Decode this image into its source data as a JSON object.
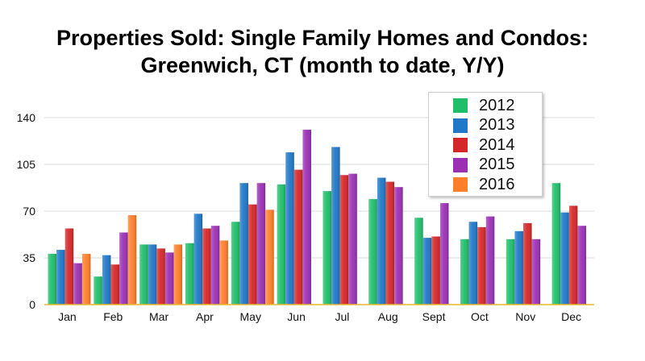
{
  "title": {
    "line1": "Properties Sold: Single Family Homes and Condos:",
    "line2": "Greenwich, CT (month to date, Y/Y)"
  },
  "chart_data": {
    "type": "bar",
    "categories": [
      "Jan",
      "Feb",
      "Mar",
      "Apr",
      "May",
      "Jun",
      "Jul",
      "Aug",
      "Sept",
      "Oct",
      "Nov",
      "Dec"
    ],
    "series": [
      {
        "name": "2012",
        "color": "#1fbf6a",
        "values": [
          38,
          21,
          45,
          46,
          62,
          90,
          85,
          79,
          65,
          49,
          49,
          91
        ]
      },
      {
        "name": "2013",
        "color": "#1f78c8",
        "values": [
          41,
          37,
          45,
          68,
          91,
          114,
          118,
          95,
          50,
          62,
          55,
          69
        ]
      },
      {
        "name": "2014",
        "color": "#d62728",
        "values": [
          57,
          30,
          42,
          57,
          75,
          101,
          97,
          92,
          51,
          58,
          61,
          74
        ]
      },
      {
        "name": "2015",
        "color": "#9b30b5",
        "values": [
          31,
          54,
          39,
          59,
          91,
          131,
          98,
          88,
          76,
          66,
          49,
          59
        ]
      },
      {
        "name": "2016",
        "color": "#ff7f2a",
        "values": [
          38,
          67,
          45,
          48,
          71,
          null,
          null,
          null,
          null,
          null,
          null,
          null
        ]
      }
    ],
    "yticks": [
      0,
      35,
      70,
      105,
      140
    ],
    "ylim": [
      0,
      140
    ],
    "grid": true,
    "legend_position": "top-right"
  }
}
